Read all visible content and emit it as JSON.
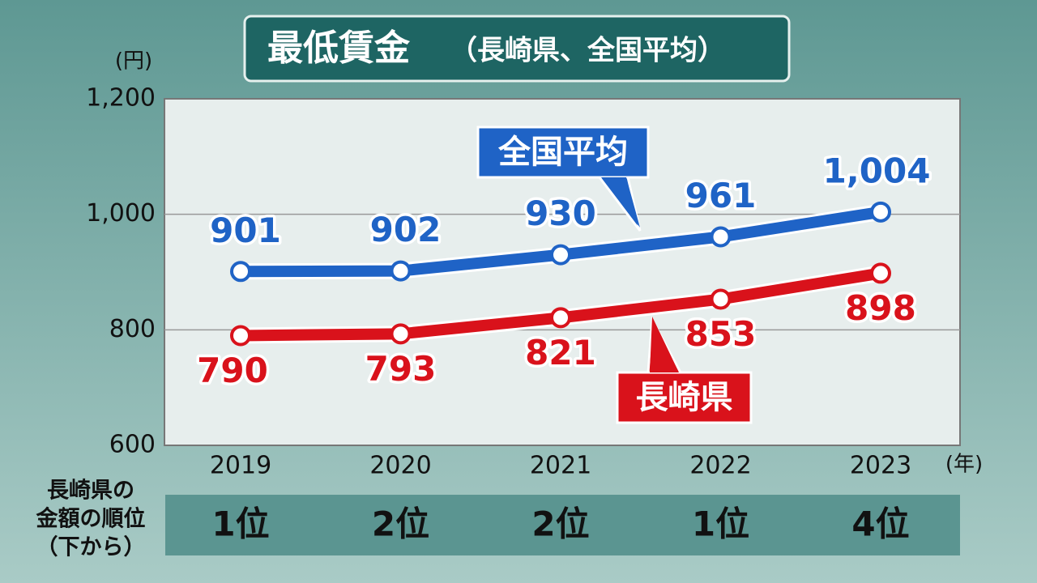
{
  "chart_data": {
    "type": "line",
    "title": "最低賃金",
    "subtitle": "（長崎県、全国平均）",
    "y_unit": "(円)",
    "x_unit": "(年)",
    "categories": [
      "2019",
      "2020",
      "2021",
      "2022",
      "2023"
    ],
    "series": [
      {
        "name": "全国平均",
        "color": "#1f63c6",
        "values": [
          901,
          902,
          930,
          961,
          1004
        ],
        "value_labels": [
          "901",
          "902",
          "930",
          "961",
          "1,004"
        ]
      },
      {
        "name": "長崎県",
        "color": "#d9121b",
        "values": [
          790,
          793,
          821,
          853,
          898
        ]
      }
    ],
    "ylim": [
      600,
      1200
    ],
    "yticks": [
      600,
      800,
      {
        "value": 1000,
        "label": "1,000"
      },
      {
        "value": 1200,
        "label": "1,200"
      }
    ],
    "grid": true,
    "rank_table": {
      "label_lines": [
        "長崎県の",
        "金額の順位",
        "（下から）"
      ],
      "ranks": [
        "1位",
        "2位",
        "2位",
        "1位",
        "4位"
      ]
    }
  }
}
